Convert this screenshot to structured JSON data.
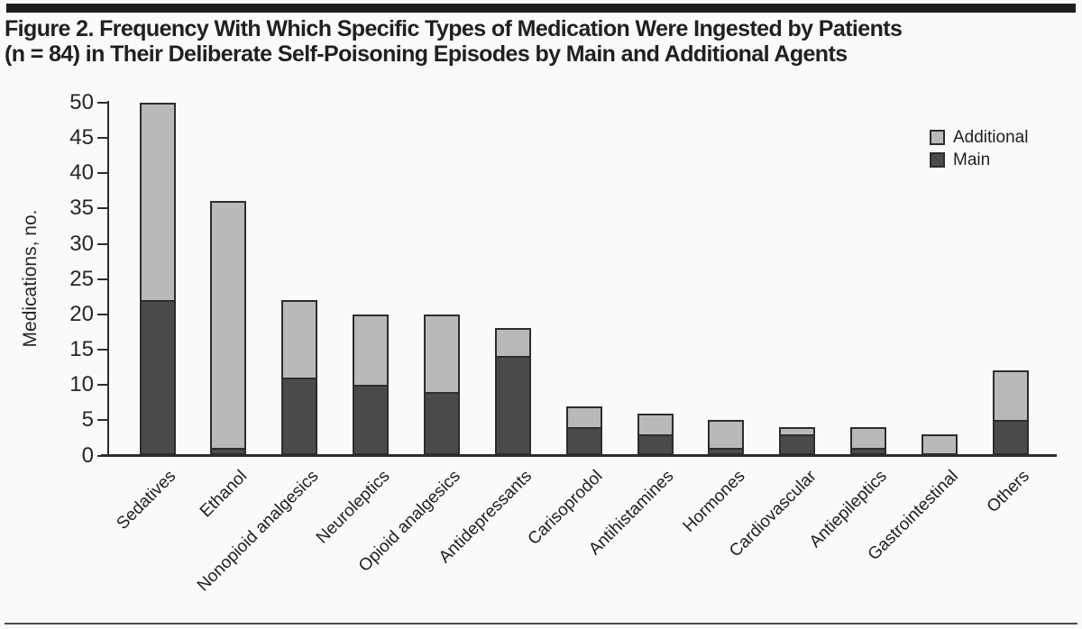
{
  "header": {
    "title_line1": "Figure 2. Frequency With Which Specific Types of Medication Were Ingested by Patients",
    "title_line2": "(n = 84) in Their Deliberate Self-Poisoning Episodes by Main and Additional Agents"
  },
  "chart_data": {
    "type": "bar",
    "stacked": true,
    "title": "",
    "xlabel": "",
    "ylabel": "Medications, no.",
    "ylim": [
      0,
      50
    ],
    "ytick_step": 5,
    "grid": false,
    "categories": [
      "Sedatives",
      "Ethanol",
      "Nonopioid analgesics",
      "Neuroleptics",
      "Opioid analgesics",
      "Antidepressants",
      "Carisoprodol",
      "Antihistamines",
      "Hormones",
      "Cardiovascular",
      "Antiepileptics",
      "Gastrointestinal",
      "Others"
    ],
    "series": [
      {
        "name": "Main",
        "color": "#4a4a4a",
        "values": [
          22,
          1,
          11,
          10,
          9,
          14,
          4,
          3,
          1,
          3,
          1,
          0,
          5
        ]
      },
      {
        "name": "Additional",
        "color": "#b9b9b9",
        "values": [
          28,
          35,
          11,
          10,
          11,
          4,
          3,
          3,
          4,
          1,
          3,
          3,
          7
        ]
      }
    ],
    "totals": [
      50,
      36,
      22,
      20,
      20,
      18,
      7,
      6,
      5,
      4,
      4,
      3,
      12
    ],
    "legend": {
      "position": "upper-right",
      "entries": [
        {
          "label": "Additional",
          "color": "#b9b9b9"
        },
        {
          "label": "Main",
          "color": "#4a4a4a"
        }
      ]
    }
  },
  "colors": {
    "main_fill": "#4a4a4a",
    "additional_fill": "#b9b9b9",
    "bar_outline": "#2d2d2d",
    "axis": "#2d2d2d",
    "top_rule": "#1e1e1e",
    "bottom_rule": "#4d4d4d"
  }
}
